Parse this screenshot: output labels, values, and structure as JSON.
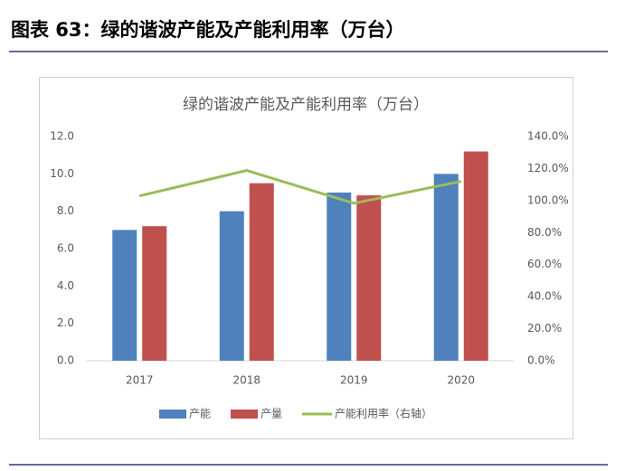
{
  "header_title": "图表 63：绿的谐波产能及产能利用率（万台）",
  "chart_data": {
    "type": "bar",
    "title": "绿的谐波产能及产能利用率（万台）",
    "categories": [
      "2017",
      "2018",
      "2019",
      "2020"
    ],
    "series": [
      {
        "name": "产能",
        "color": "#4f81bd",
        "values": [
          7.0,
          8.0,
          9.0,
          10.0
        ]
      },
      {
        "name": "产量",
        "color": "#c0504d",
        "values": [
          7.2,
          9.5,
          8.85,
          11.2
        ]
      },
      {
        "name": "产能利用率（右轴）",
        "color": "#9bbb59",
        "type": "line",
        "axis": "y2",
        "values": [
          102.9,
          118.8,
          98.3,
          112.0
        ]
      }
    ],
    "ylim": [
      0,
      12
    ],
    "yticks": [
      {
        "value": 0,
        "label": "0.0"
      },
      {
        "value": 2,
        "label": "2.0"
      },
      {
        "value": 4,
        "label": "4.0"
      },
      {
        "value": 6,
        "label": "6.0"
      },
      {
        "value": 8,
        "label": "8.0"
      },
      {
        "value": 10,
        "label": "10.0"
      },
      {
        "value": 12,
        "label": "12.0"
      }
    ],
    "y2lim": [
      0,
      140
    ],
    "y2ticks": [
      {
        "value": 0,
        "label": "0.0%"
      },
      {
        "value": 20,
        "label": "20.0%"
      },
      {
        "value": 40,
        "label": "40.0%"
      },
      {
        "value": 60,
        "label": "60.0%"
      },
      {
        "value": 80,
        "label": "80.0%"
      },
      {
        "value": 100,
        "label": "100.0%"
      },
      {
        "value": 120,
        "label": "120.0%"
      },
      {
        "value": 140,
        "label": "140.0%"
      }
    ],
    "legend": "bottom"
  }
}
